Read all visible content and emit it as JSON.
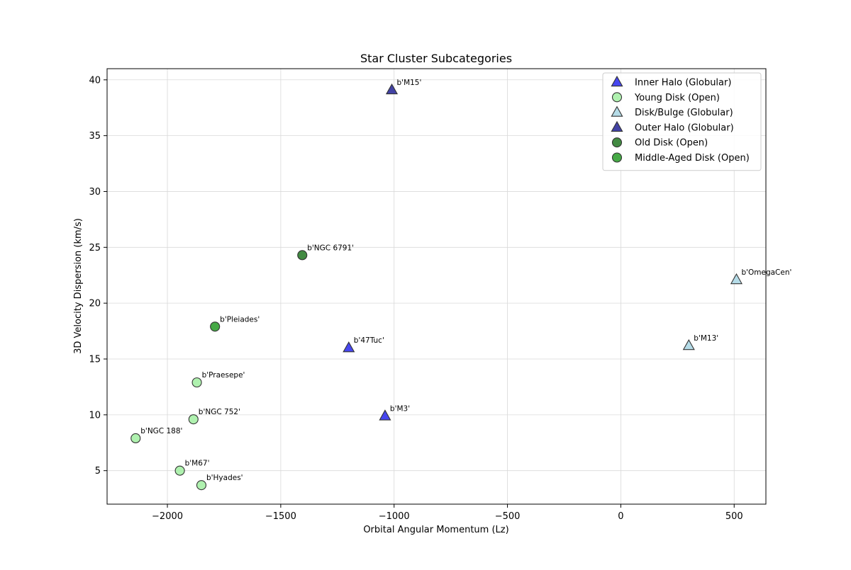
{
  "chart_data": {
    "type": "scatter",
    "title": "Star Cluster Subcategories",
    "xlabel": "Orbital Angular Momentum (Lz)",
    "ylabel": "3D Velocity Dispersion (km/s)",
    "xlim": [
      -2266,
      640
    ],
    "ylim": [
      2.0,
      41.0
    ],
    "xticks": [
      -2000,
      -1500,
      -1000,
      -500,
      0,
      500
    ],
    "xtick_labels": [
      "−2000",
      "−1500",
      "−1000",
      "−500",
      "0",
      "500"
    ],
    "yticks": [
      5,
      10,
      15,
      20,
      25,
      30,
      35,
      40
    ],
    "ytick_labels": [
      "5",
      "10",
      "15",
      "20",
      "25",
      "30",
      "35",
      "40"
    ],
    "grid": true,
    "legend_position": "top-right",
    "series": [
      {
        "name": "Inner Halo (Globular)",
        "marker": "triangle",
        "color": "#3333ee",
        "points": [
          {
            "label": "b'47Tuc'",
            "x": -1200,
            "y": 16.0
          },
          {
            "label": "b'M3'",
            "x": -1040,
            "y": 9.9
          }
        ]
      },
      {
        "name": "Young Disk (Open)",
        "marker": "circle",
        "color": "#a6f0a6",
        "points": [
          {
            "label": "b'Praesepe'",
            "x": -1870,
            "y": 12.9
          },
          {
            "label": "b'NGC 752'",
            "x": -1885,
            "y": 9.6
          },
          {
            "label": "b'NGC 188'",
            "x": -2140,
            "y": 7.9
          },
          {
            "label": "b'M67'",
            "x": -1945,
            "y": 5.0
          },
          {
            "label": "b'Hyades'",
            "x": -1850,
            "y": 3.7
          }
        ]
      },
      {
        "name": "Disk/Bulge (Globular)",
        "marker": "triangle",
        "color": "#add8e6",
        "points": [
          {
            "label": "b'OmegaCen'",
            "x": 510,
            "y": 22.1
          },
          {
            "label": "b'M13'",
            "x": 300,
            "y": 16.2
          }
        ]
      },
      {
        "name": "Outer Halo (Globular)",
        "marker": "triangle",
        "color": "#2e2e9a",
        "points": [
          {
            "label": "b'M15'",
            "x": -1010,
            "y": 39.1
          }
        ]
      },
      {
        "name": "Old Disk (Open)",
        "marker": "circle",
        "color": "#2d7d2d",
        "points": [
          {
            "label": "b'NGC 6791'",
            "x": -1405,
            "y": 24.3
          }
        ]
      },
      {
        "name": "Middle-Aged Disk (Open)",
        "marker": "circle",
        "color": "#32a032",
        "points": [
          {
            "label": "b'Pleiades'",
            "x": -1790,
            "y": 17.9
          }
        ]
      }
    ]
  }
}
